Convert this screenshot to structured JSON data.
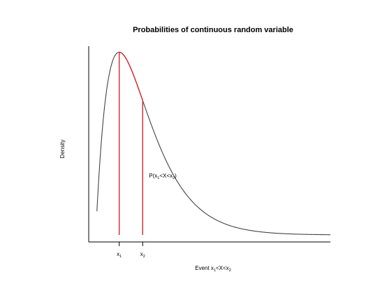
{
  "chart_data": {
    "type": "area",
    "title": "Probabilities of continuous random variable",
    "xlabel": {
      "prefix": "Event x",
      "sub1": "1",
      "mid": "<X<x",
      "sub2": "2"
    },
    "ylabel": "Density",
    "x_ticks": [
      {
        "base": "x",
        "sub": "1",
        "x": 1
      },
      {
        "base": "x",
        "sub": "2",
        "x": 2
      }
    ],
    "annotation": {
      "prefix": "P(x",
      "sub1": "1",
      "mid": "<X<x",
      "sub2": "2",
      "suffix": ")"
    },
    "curve": {
      "distribution": "gamma",
      "shape": 2,
      "scale": 1,
      "x_range": [
        0.05,
        10.0
      ],
      "color": "#444444"
    },
    "interval": {
      "x1": 1,
      "x2": 2,
      "color": "#d62728"
    },
    "xlim": [
      -0.3,
      10.0
    ],
    "ylim": [
      0,
      0.38
    ],
    "grid": false,
    "legend": false
  }
}
